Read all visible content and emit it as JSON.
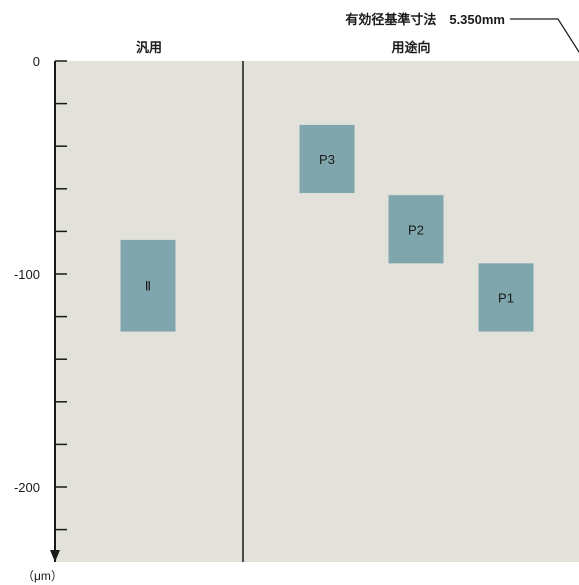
{
  "chart_data": {
    "type": "bar",
    "annotation": "有効径基準寸法　5.350mm",
    "sections": [
      {
        "label": "汎用"
      },
      {
        "label": "用途向"
      }
    ],
    "y_unit": "（μm）",
    "ylim": [
      -235,
      0
    ],
    "y_ticks_major": [
      0,
      -100,
      -200
    ],
    "y_tick_labels": [
      "0",
      "-100",
      "-200"
    ],
    "y_ticks_minor": [
      -20,
      -40,
      -60,
      -80,
      -120,
      -140,
      -160,
      -180,
      -220
    ],
    "bars": [
      {
        "label": "Ⅱ",
        "section": 0,
        "upper": -84,
        "lower": -127
      },
      {
        "label": "P3",
        "section": 1,
        "upper": -30,
        "lower": -62
      },
      {
        "label": "P2",
        "section": 1,
        "upper": -63,
        "lower": -95
      },
      {
        "label": "P1",
        "section": 1,
        "upper": -95,
        "lower": -127
      }
    ],
    "colors": {
      "plot_bg": "#e2e1da",
      "bar": "#7fa6ad",
      "axis": "#1a1a1a"
    },
    "grid": false,
    "legend": "none"
  }
}
